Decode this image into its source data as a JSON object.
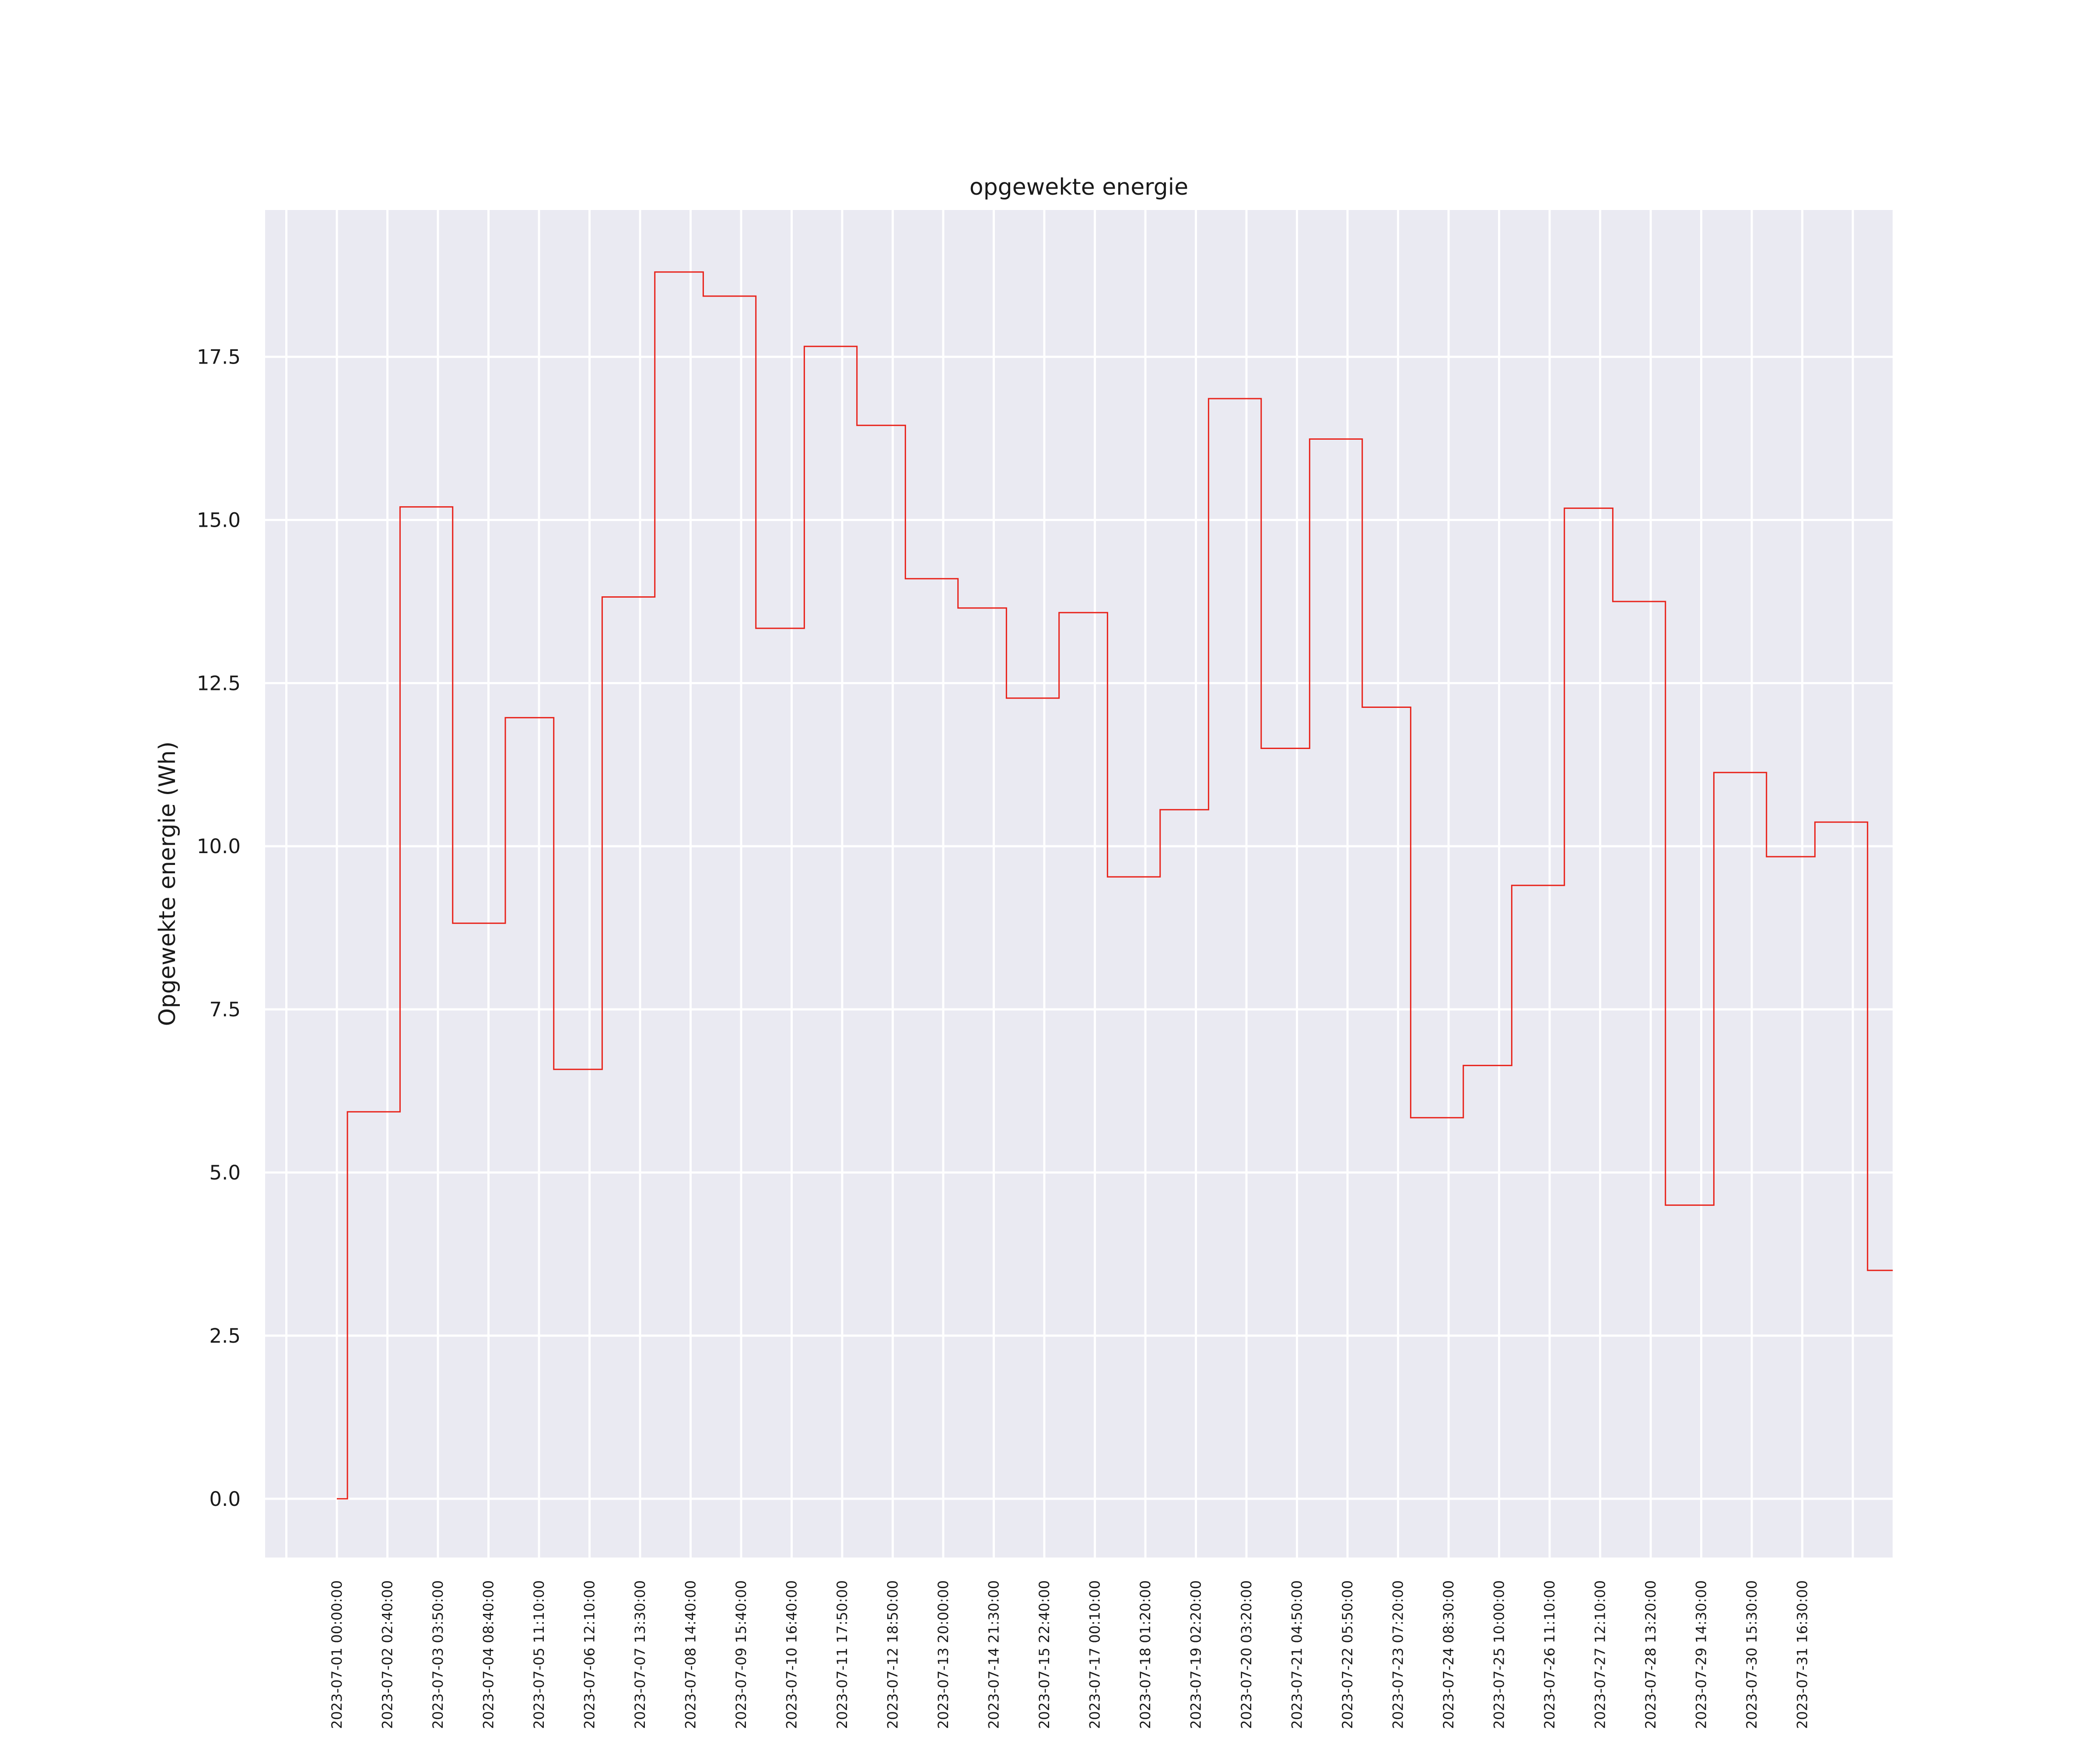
{
  "chart_data": {
    "type": "line",
    "step": "post",
    "title": "opgewekte energie",
    "xlabel": "",
    "ylabel": "Opgewekte energie (Wh)",
    "ylim": [
      -0.9,
      19.75
    ],
    "yticks": [
      0.0,
      2.5,
      5.0,
      7.5,
      10.0,
      12.5,
      15.0,
      17.5
    ],
    "ytick_labels": [
      "0.0",
      "2.5",
      "5.0",
      "7.5",
      "10.0",
      "12.5",
      "15.0",
      "17.5"
    ],
    "x_tick_labels": [
      "2023-07-01 00:00:00",
      "2023-07-02 02:40:00",
      "2023-07-03 03:50:00",
      "2023-07-04 08:40:00",
      "2023-07-05 11:10:00",
      "2023-07-06 12:10:00",
      "2023-07-07 13:30:00",
      "2023-07-08 14:40:00",
      "2023-07-09 15:40:00",
      "2023-07-10 16:40:00",
      "2023-07-11 17:50:00",
      "2023-07-12 18:50:00",
      "2023-07-13 20:00:00",
      "2023-07-14 21:30:00",
      "2023-07-15 22:40:00",
      "2023-07-17 00:10:00",
      "2023-07-18 01:20:00",
      "2023-07-19 02:20:00",
      "2023-07-20 03:20:00",
      "2023-07-21 04:50:00",
      "2023-07-22 05:50:00",
      "2023-07-23 07:20:00",
      "2023-07-24 08:30:00",
      "2023-07-25 10:00:00",
      "2023-07-26 11:10:00",
      "2023-07-27 12:10:00",
      "2023-07-28 13:20:00",
      "2023-07-29 14:30:00",
      "2023-07-30 15:30:00",
      "2023-07-31 16:30:00"
    ],
    "x": [
      "2023-07-01 00:00",
      "2023-07-01 05:00",
      "2023-07-02 06:00",
      "2023-07-03 07:00",
      "2023-07-04 08:00",
      "2023-07-05 07:00",
      "2023-07-06 06:00",
      "2023-07-07 07:00",
      "2023-07-08 06:00",
      "2023-07-09 07:00",
      "2023-07-10 06:00",
      "2023-07-11 07:00",
      "2023-07-12 06:00",
      "2023-07-13 07:00",
      "2023-07-14 06:00",
      "2023-07-15 07:00",
      "2023-07-16 06:00",
      "2023-07-17 07:00",
      "2023-07-18 06:00",
      "2023-07-19 07:00",
      "2023-07-20 06:00",
      "2023-07-21 07:00",
      "2023-07-22 06:00",
      "2023-07-23 07:00",
      "2023-07-24 06:00",
      "2023-07-25 07:00",
      "2023-07-26 06:00",
      "2023-07-27 07:00",
      "2023-07-28 06:00",
      "2023-07-29 07:00",
      "2023-07-30 06:00",
      "2023-07-31 07:00"
    ],
    "values": [
      0.0,
      5.93,
      15.2,
      8.82,
      11.97,
      6.58,
      13.82,
      18.8,
      18.43,
      13.34,
      17.66,
      16.45,
      14.1,
      13.65,
      12.27,
      13.58,
      9.53,
      10.56,
      16.86,
      11.5,
      16.24,
      12.13,
      5.84,
      6.64,
      9.4,
      15.18,
      13.75,
      4.5,
      11.13,
      9.84,
      10.37,
      3.5
    ],
    "x_end": "2023-07-31 19:00",
    "grid": true,
    "line_color": "#e8231b",
    "plot_background": "#eaeaf2",
    "grid_color": "#ffffff"
  }
}
